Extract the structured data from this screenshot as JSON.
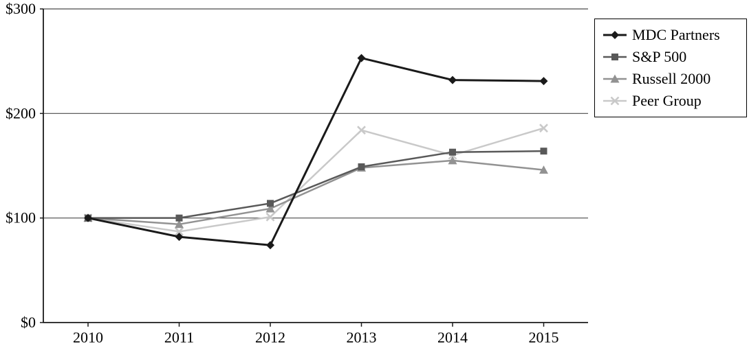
{
  "chart_data": {
    "type": "line",
    "title": "",
    "xlabel": "",
    "ylabel": "",
    "categories": [
      "2010",
      "2011",
      "2012",
      "2013",
      "2014",
      "2015"
    ],
    "series": [
      {
        "name": "MDC Partners",
        "values": [
          100,
          82,
          74,
          253,
          232,
          231
        ],
        "color": "#1a1a1a",
        "marker": "diamond",
        "stroke_width": 3
      },
      {
        "name": "S&P 500",
        "values": [
          100,
          100,
          114,
          149,
          163,
          164
        ],
        "color": "#595959",
        "marker": "square",
        "stroke_width": 2.5
      },
      {
        "name": "Russell 2000",
        "values": [
          100,
          94,
          109,
          148,
          155,
          146
        ],
        "color": "#929292",
        "marker": "triangle",
        "stroke_width": 2.5
      },
      {
        "name": "Peer Group",
        "values": [
          100,
          87,
          101,
          184,
          160,
          186
        ],
        "color": "#c9c9c9",
        "marker": "x",
        "stroke_width": 2.5
      }
    ],
    "ylim": [
      0,
      300
    ],
    "yticks": [
      0,
      100,
      200,
      300
    ],
    "ytick_labels": [
      "$0",
      "$100",
      "$200",
      "$300"
    ],
    "grid": true,
    "legend_position": "top-right"
  },
  "colors": {
    "axis": "#1a1a1a",
    "grid": "#4a4a4a",
    "tick_text": "#000000",
    "background": "#ffffff",
    "legend_border": "#000000"
  }
}
